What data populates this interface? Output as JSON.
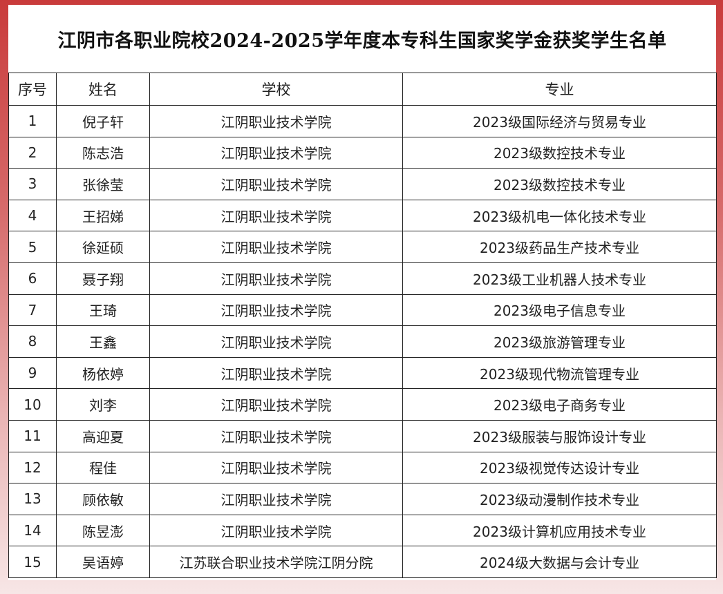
{
  "title": "江阴市各职业院校2024-2025学年度本专科生国家奖学金获奖学生名单",
  "headers": [
    "序号",
    "姓名",
    "学校",
    "专业"
  ],
  "rows": [
    [
      "1",
      "倪子轩",
      "江阴职业技术学院",
      "2023级国际经济与贸易专业"
    ],
    [
      "2",
      "陈志浩",
      "江阴职业技术学院",
      "2023级数控技术专业"
    ],
    [
      "3",
      "张徐莹",
      "江阴职业技术学院",
      "2023级数控技术专业"
    ],
    [
      "4",
      "王招娣",
      "江阴职业技术学院",
      "2023级机电一体化技术专业"
    ],
    [
      "5",
      "徐延硕",
      "江阴职业技术学院",
      "2023级药品生产技术专业"
    ],
    [
      "6",
      "聂子翔",
      "江阴职业技术学院",
      "2023级工业机器人技术专业"
    ],
    [
      "7",
      "王琦",
      "江阴职业技术学院",
      "2023级电子信息专业"
    ],
    [
      "8",
      "王鑫",
      "江阴职业技术学院",
      "2023级旅游管理专业"
    ],
    [
      "9",
      "杨依婷",
      "江阴职业技术学院",
      "2023级现代物流管理专业"
    ],
    [
      "10",
      "刘李",
      "江阴职业技术学院",
      "2023级电子商务专业"
    ],
    [
      "11",
      "高迎夏",
      "江阴职业技术学院",
      "2023级服装与服饰设计专业"
    ],
    [
      "12",
      "程佳",
      "江阴职业技术学院",
      "2023级视觉传达设计专业"
    ],
    [
      "13",
      "顾依敏",
      "江阴职业技术学院",
      "2023级动漫制作技术专业"
    ],
    [
      "14",
      "陈昱澎",
      "江阴职业技术学院",
      "2023级计算机应用技术专业"
    ],
    [
      "15",
      "吴语婷",
      "江苏联合职业技术学院江阴分院",
      "2024级大数据与会计专业"
    ]
  ]
}
